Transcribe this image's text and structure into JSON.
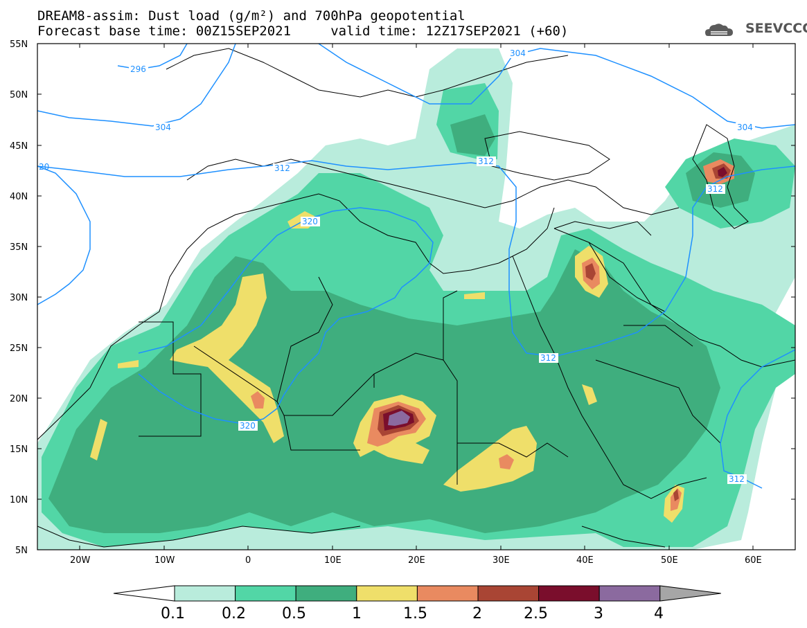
{
  "title": {
    "line1": "DREAM8-assim: Dust load (g/m²) and 700hPa geopotential",
    "line2": "Forecast base time: 00Z15SEP2021     valid time: 12Z17SEP2021 (+60)"
  },
  "logo": {
    "text": "SEEVCCC",
    "icon": "cloud-icon"
  },
  "axes": {
    "lat_labels": [
      "55N",
      "50N",
      "45N",
      "40N",
      "35N",
      "30N",
      "25N",
      "20N",
      "15N",
      "10N",
      "5N"
    ],
    "lon_labels": [
      "20W",
      "10W",
      "0",
      "10E",
      "20E",
      "30E",
      "40E",
      "50E",
      "60E"
    ],
    "lat_range": [
      5,
      55
    ],
    "lon_range": [
      -25,
      65
    ]
  },
  "colorbar": {
    "labels": [
      "0.1",
      "0.2",
      "0.5",
      "1",
      "1.5",
      "2",
      "2.5",
      "3",
      "4"
    ],
    "colors": [
      "#b9ecdc",
      "#52d6a6",
      "#3fae7e",
      "#efdf6a",
      "#e98a60",
      "#a94534",
      "#7a0e2c",
      "#8b6a9f",
      "#a6a6a6"
    ],
    "under_color": "#ffffff",
    "over_color": "#a6a6a6"
  },
  "contours": {
    "color": "#1e90ff",
    "labels": [
      "296",
      "304",
      "304",
      "304",
      "312",
      "312",
      "312",
      "312",
      "320",
      "320",
      "20"
    ]
  },
  "dust_hotspots": {
    "max_region": "Chad (~17E, 18N), values 3–4 g/m²",
    "secondary": [
      "Iraq (~41E, 33N)",
      "Caspian (~56E, 42N)",
      "Somalia (~51E, 11N)",
      "Algeria/Mali (~2E, 20N)"
    ]
  }
}
